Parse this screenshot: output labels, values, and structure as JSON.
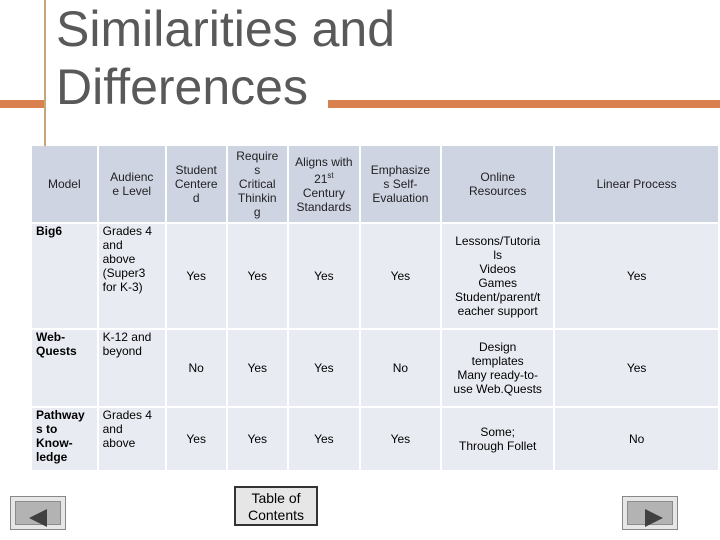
{
  "title": {
    "line1": "Similarities and",
    "line2": "Differences"
  },
  "table": {
    "headers": [
      "Model",
      "Audienc\ne Level",
      "Student\nCentere\nd",
      "Require\ns\nCritical\nThinkin\ng",
      "Aligns with\n21st\nCentury\nStandards",
      "Emphasize\ns Self-\nEvaluation",
      "Online\nResources",
      "Linear Process"
    ],
    "rows": [
      [
        "Big6",
        "Grades 4\nand\nabove\n(Super3\nfor K-3)",
        "Yes",
        "Yes",
        "Yes",
        "Yes",
        "Lessons/Tutoria\nls\nVideos\nGames\nStudent/parent/t\neacher support",
        "Yes"
      ],
      [
        "Web-\nQuests",
        "K-12 and\nbeyond",
        "No",
        "Yes",
        "Yes",
        "No",
        "Design\ntemplates\nMany ready-to-\nuse Web.Quests",
        "Yes"
      ],
      [
        "Pathway\ns to\nKnow-\nledge",
        "Grades 4\nand\nabove",
        "Yes",
        "Yes",
        "Yes",
        "Yes",
        "Some;\nThrough Follet",
        "No"
      ]
    ]
  },
  "nav": {
    "prev_icon": "triangle-left-icon",
    "next_icon": "triangle-right-icon",
    "toc_label": "Table of\nContents"
  },
  "colors": {
    "accent": "#d9804f",
    "header_fill": "#cfd4e3",
    "cell_fill": "#e9ebf2",
    "title": "#595959"
  }
}
